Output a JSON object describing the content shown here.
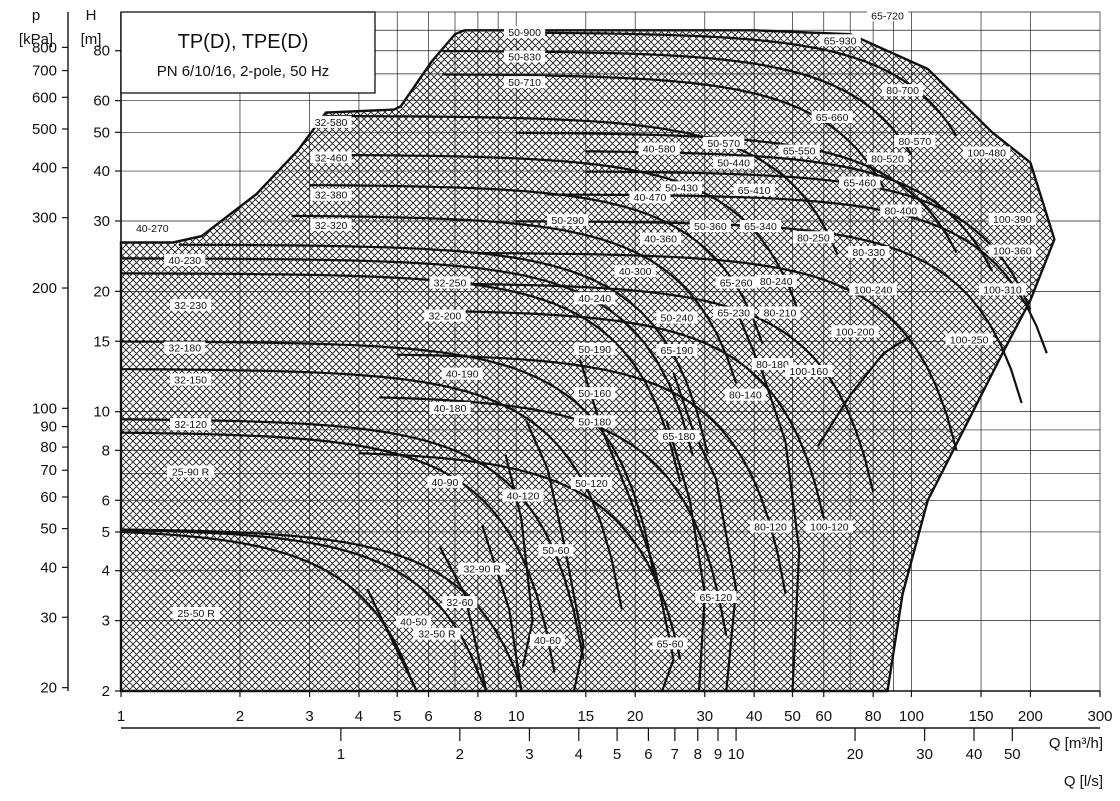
{
  "chart_data": {
    "type": "area",
    "title": "TP(D), TPE(D)",
    "subtitle": "PN 6/10/16, 2-pole, 50 Hz",
    "x_scale": "log",
    "y_scale": "log",
    "xlabel": "Q [m³/h]",
    "x2label": "Q [l/s]",
    "ylabel": "H",
    "ylabel_unit": "[m]",
    "y2label": "p",
    "y2label_unit": "[kPa]",
    "xlim": [
      1,
      300
    ],
    "ylim": [
      2,
      100
    ],
    "x_ticks": [
      1,
      2,
      3,
      4,
      5,
      6,
      8,
      10,
      15,
      20,
      30,
      40,
      50,
      60,
      80,
      100,
      150,
      200,
      300
    ],
    "x2_ticks": [
      1,
      2,
      3,
      4,
      5,
      6,
      7,
      8,
      9,
      10,
      20,
      30,
      40,
      50
    ],
    "y_ticks": [
      2,
      3,
      4,
      5,
      6,
      8,
      10,
      15,
      20,
      30,
      40,
      50,
      60,
      80
    ],
    "p_ticks": [
      20,
      30,
      40,
      50,
      60,
      70,
      80,
      90,
      100,
      200,
      300,
      400,
      500,
      600,
      700,
      800
    ],
    "grid": true,
    "ranges": [
      {
        "label": "25-50 R",
        "x": 1.55,
        "y": 3.1
      },
      {
        "label": "25-90 R",
        "x": 1.5,
        "y": 7.0
      },
      {
        "label": "32-120",
        "x": 1.5,
        "y": 9.2
      },
      {
        "label": "32-150",
        "x": 1.5,
        "y": 11.9
      },
      {
        "label": "32-180",
        "x": 1.45,
        "y": 14.3
      },
      {
        "label": "32-230",
        "x": 1.5,
        "y": 18.3
      },
      {
        "label": "40-230",
        "x": 1.45,
        "y": 23.7
      },
      {
        "label": "40-270",
        "x": 1.2,
        "y": 28.5
      },
      {
        "label": "32-320",
        "x": 3.4,
        "y": 29.0
      },
      {
        "label": "32-380",
        "x": 3.4,
        "y": 34.5
      },
      {
        "label": "32-460",
        "x": 3.4,
        "y": 42.8
      },
      {
        "label": "32-580",
        "x": 3.4,
        "y": 52.5
      },
      {
        "label": "50-900",
        "x": 10.5,
        "y": 88.0
      },
      {
        "label": "50-830",
        "x": 10.5,
        "y": 76.5
      },
      {
        "label": "50-710",
        "x": 10.5,
        "y": 66.0
      },
      {
        "label": "32-250",
        "x": 6.8,
        "y": 20.8
      },
      {
        "label": "32-200",
        "x": 6.6,
        "y": 17.2
      },
      {
        "label": "40-190",
        "x": 7.3,
        "y": 12.3
      },
      {
        "label": "40-180",
        "x": 6.8,
        "y": 10.1
      },
      {
        "label": "40-90",
        "x": 6.6,
        "y": 6.6
      },
      {
        "label": "40-120",
        "x": 10.4,
        "y": 6.1
      },
      {
        "label": "32-90 R",
        "x": 8.2,
        "y": 4.0
      },
      {
        "label": "32-60",
        "x": 7.2,
        "y": 3.3
      },
      {
        "label": "40-50",
        "x": 5.5,
        "y": 2.95
      },
      {
        "label": "32-50 R",
        "x": 6.3,
        "y": 2.75
      },
      {
        "label": "40-60",
        "x": 12.0,
        "y": 2.65
      },
      {
        "label": "50-60",
        "x": 12.6,
        "y": 4.45
      },
      {
        "label": "50-120",
        "x": 15.5,
        "y": 6.55
      },
      {
        "label": "50-180",
        "x": 15.8,
        "y": 9.35
      },
      {
        "label": "50-160",
        "x": 15.8,
        "y": 11.0
      },
      {
        "label": "50-190",
        "x": 15.8,
        "y": 14.2
      },
      {
        "label": "40-240",
        "x": 15.8,
        "y": 19.0
      },
      {
        "label": "40-300",
        "x": 20.0,
        "y": 22.2
      },
      {
        "label": "50-240",
        "x": 25.5,
        "y": 17.0
      },
      {
        "label": "50-290",
        "x": 13.5,
        "y": 29.8
      },
      {
        "label": "40-360",
        "x": 23.2,
        "y": 26.8
      },
      {
        "label": "40-470",
        "x": 21.8,
        "y": 34.0
      },
      {
        "label": "40-580",
        "x": 23.0,
        "y": 45.0
      },
      {
        "label": "50-430",
        "x": 26.2,
        "y": 36.0
      },
      {
        "label": "50-360",
        "x": 31.0,
        "y": 28.8
      },
      {
        "label": "50-440",
        "x": 35.5,
        "y": 41.5
      },
      {
        "label": "50-570",
        "x": 33.5,
        "y": 46.5
      },
      {
        "label": "65-190",
        "x": 25.5,
        "y": 14.1
      },
      {
        "label": "65-260",
        "x": 36.0,
        "y": 20.8
      },
      {
        "label": "65-230",
        "x": 35.5,
        "y": 17.5
      },
      {
        "label": "65-340",
        "x": 41.5,
        "y": 28.8
      },
      {
        "label": "65-410",
        "x": 40.0,
        "y": 35.5
      },
      {
        "label": "65-550",
        "x": 52.0,
        "y": 44.5
      },
      {
        "label": "65-660",
        "x": 63.0,
        "y": 54.0
      },
      {
        "label": "65-930",
        "x": 66.0,
        "y": 84.0
      },
      {
        "label": "65-720",
        "x": 87.0,
        "y": 97.0
      },
      {
        "label": "65-460",
        "x": 74.0,
        "y": 37.0
      },
      {
        "label": "65-180",
        "x": 25.8,
        "y": 8.6
      },
      {
        "label": "65-120",
        "x": 32.0,
        "y": 3.4
      },
      {
        "label": "65-60",
        "x": 24.5,
        "y": 2.6
      },
      {
        "label": "80-120",
        "x": 44.0,
        "y": 5.1
      },
      {
        "label": "100-120",
        "x": 62.0,
        "y": 5.1
      },
      {
        "label": "80-140",
        "x": 38.0,
        "y": 10.9
      },
      {
        "label": "80-180",
        "x": 44.5,
        "y": 13.0
      },
      {
        "label": "80-210",
        "x": 46.5,
        "y": 17.5
      },
      {
        "label": "80-240",
        "x": 45.5,
        "y": 21.0
      },
      {
        "label": "80-250",
        "x": 56.5,
        "y": 27.0
      },
      {
        "label": "80-330",
        "x": 78.0,
        "y": 24.8
      },
      {
        "label": "80-400",
        "x": 94.0,
        "y": 31.5
      },
      {
        "label": "80-520",
        "x": 87.0,
        "y": 42.5
      },
      {
        "label": "80-570",
        "x": 102.0,
        "y": 47.0
      },
      {
        "label": "80-700",
        "x": 95.0,
        "y": 63.0
      },
      {
        "label": "100-160",
        "x": 55.0,
        "y": 12.5
      },
      {
        "label": "100-200",
        "x": 72.0,
        "y": 15.7
      },
      {
        "label": "100-240",
        "x": 80.0,
        "y": 20.0
      },
      {
        "label": "100-250",
        "x": 140.0,
        "y": 15.0
      },
      {
        "label": "100-310",
        "x": 170.0,
        "y": 20.0
      },
      {
        "label": "100-360",
        "x": 180.0,
        "y": 25.0
      },
      {
        "label": "100-390",
        "x": 180.0,
        "y": 30.0
      },
      {
        "label": "100-480",
        "x": 155.0,
        "y": 44.0
      }
    ]
  }
}
